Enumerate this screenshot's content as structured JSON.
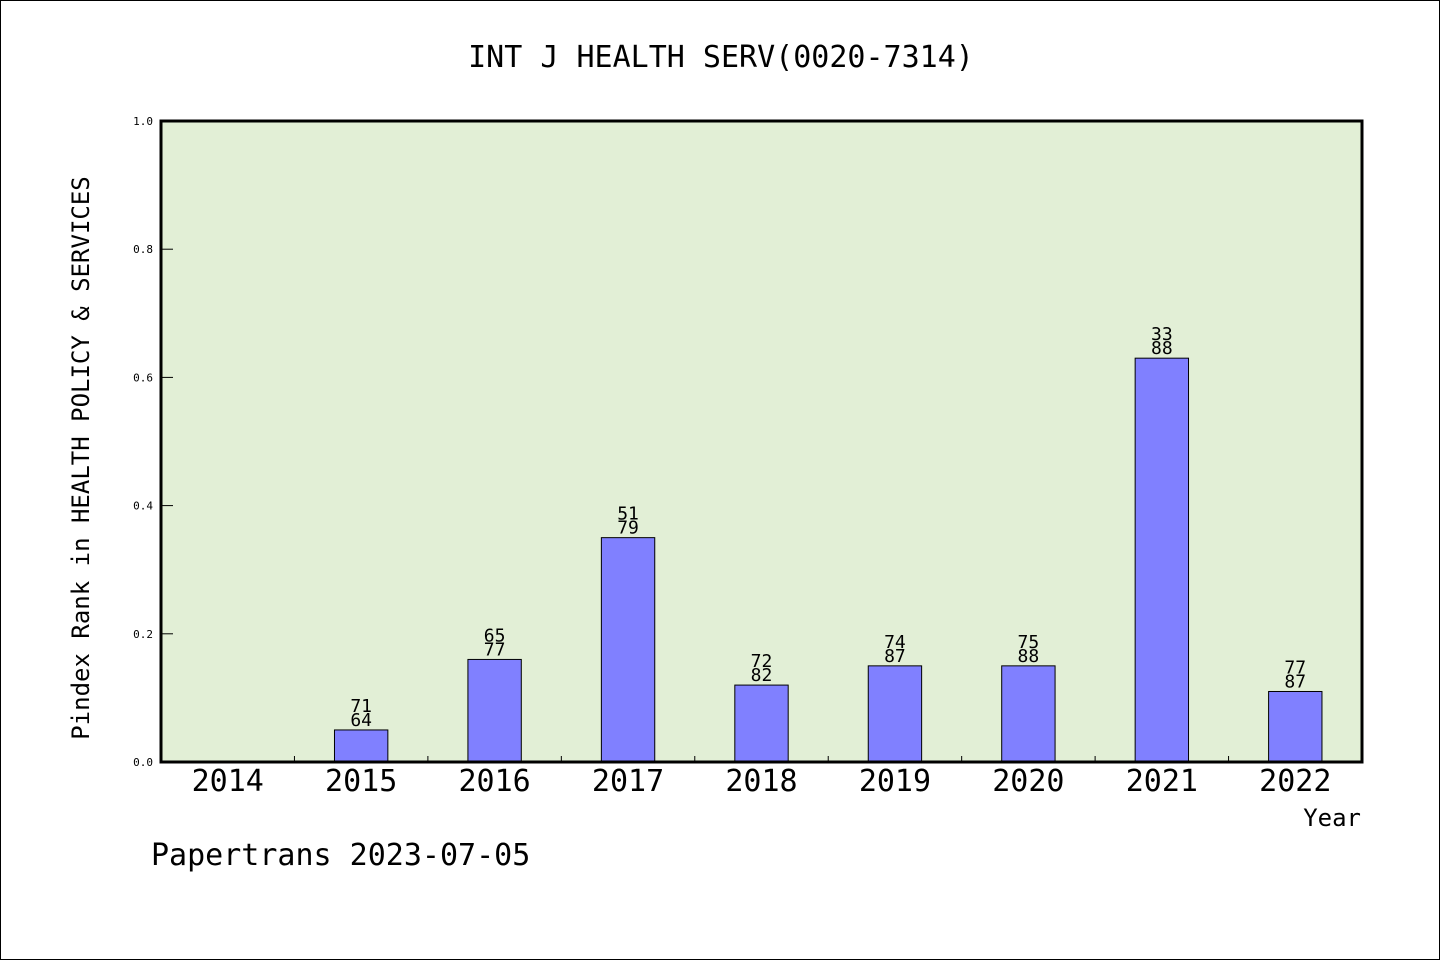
{
  "colors": {
    "plot_background": "#e2efd6",
    "bar_fill": "#8080ff",
    "bar_stroke": "#000000",
    "axis": "#000000"
  },
  "footer_text": "Papertrans 2023-07-05",
  "chart_data": {
    "type": "bar",
    "title": "INT J HEALTH SERV(0020-7314)",
    "xlabel": "Year",
    "ylabel": "Pindex Rank in HEALTH POLICY & SERVICES",
    "ylim": [
      0,
      1.0
    ],
    "yticks": [
      "0.0",
      "0.2",
      "0.4",
      "0.6",
      "0.8",
      "1.0"
    ],
    "ytick_values": [
      0,
      0.2,
      0.4,
      0.6,
      0.8,
      1.0
    ],
    "grid": false,
    "categories": [
      "2014",
      "2015",
      "2016",
      "2017",
      "2018",
      "2019",
      "2020",
      "2021",
      "2022"
    ],
    "values": [
      0,
      0.05,
      0.16,
      0.35,
      0.12,
      0.15,
      0.15,
      0.63,
      0.11
    ],
    "labels_top": [
      "",
      "71",
      "65",
      "51",
      "72",
      "74",
      "75",
      "33",
      "77"
    ],
    "labels_bottom": [
      "",
      "64",
      "77",
      "79",
      "82",
      "87",
      "88",
      "88",
      "87"
    ]
  }
}
